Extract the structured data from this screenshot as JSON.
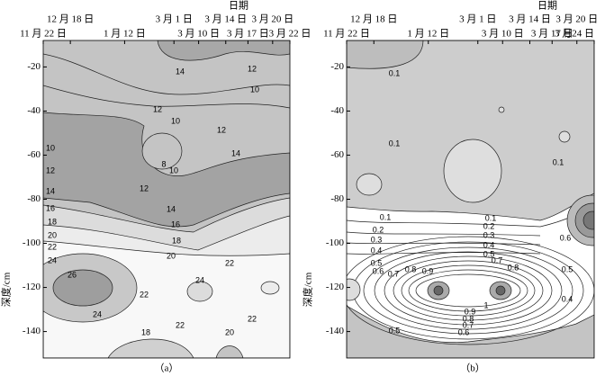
{
  "chart_data": [
    {
      "type": "contour",
      "caption": "（a）",
      "x_label": "日期",
      "y_label": "深度/cm",
      "categories": [
        "11 月 22 日",
        "12 月 18 日",
        "1 月 12 日",
        "3 月 1 日",
        "3 月 10 日",
        "3 月 14 日",
        "3 月 17 日",
        "3 月 20 日",
        "3 月 22 日"
      ],
      "ylim": [
        -152,
        -8
      ],
      "yticks": [
        -20,
        -40,
        -60,
        -80,
        -100,
        -120,
        -140
      ],
      "contour_labels": [
        14,
        12,
        10,
        12,
        10,
        12,
        10,
        8,
        10,
        14,
        12,
        12,
        14,
        16,
        14,
        18,
        16,
        20,
        18,
        22,
        20,
        24,
        22,
        26,
        24,
        22,
        24,
        22,
        22,
        18,
        20
      ]
    },
    {
      "type": "contour",
      "caption": "（b）",
      "x_label": "日期",
      "y_label": "深度/cm",
      "categories": [
        "11 月 22 日",
        "12 月 18 日",
        "1 月 12 日",
        "3 月 1 日",
        "3 月 10 日",
        "3 月 14 日",
        "3 月 17 日",
        "3 月 20 日",
        "3 月24 日"
      ],
      "ylim": [
        -152,
        -8
      ],
      "yticks": [
        -20,
        -40,
        -60,
        -80,
        -100,
        -120,
        -140
      ],
      "contour_labels": [
        0.1,
        0.1,
        0.1,
        0.1,
        0.1,
        0.2,
        0.2,
        0.3,
        0.3,
        0.4,
        0.4,
        0.5,
        0.5,
        0.6,
        0.6,
        0.7,
        0.7,
        0.8,
        0.8,
        0.9,
        0.5,
        0.4,
        1,
        0.9,
        0.8,
        0.7,
        0.6,
        0.5
      ]
    }
  ]
}
